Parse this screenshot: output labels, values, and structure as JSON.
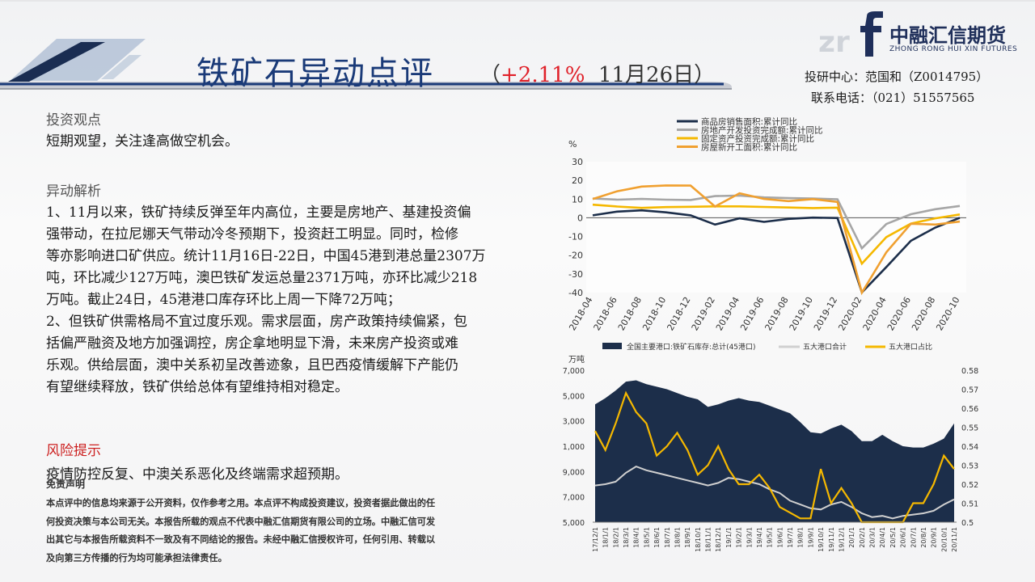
{
  "header": {
    "title": "铁矿石异动点评",
    "paren_open": "（",
    "change": "+2.11%",
    "date": "11月26日",
    "paren_close": "）",
    "logo_cn": "中融汇信期货",
    "logo_en": "ZHONG RONG HUI XIN FUTURES",
    "contact_line1": "投研中心：范国和（Z0014795）",
    "contact_line2": "联系电话：（021）51557565"
  },
  "content": {
    "view_title": "投资观点",
    "view_text": "短期观望，关注逢高做空机会。",
    "analysis_title": "异动解析",
    "analysis_lines": [
      "1、11月以来，铁矿持续反弹至年内高位，主要是房地产、基建投资偏",
      "强带动，在拉尼娜天气带动冷冬预期下，投资赶工明显。同时，检修",
      "等亦影响进口矿供应。统计11月16日-22日，中国45港到港总量2307万",
      "吨，环比减少127万吨，澳巴铁矿发运总量2371万吨，亦环比减少218",
      "万吨。截止24日，45港港口库存环比上周一下降72万吨；",
      "2、但铁矿供需格局不宜过度乐观。需求层面，房产政策持续偏紧，包",
      "括偏严融资及地方加强调控，房企拿地明显下滑，未来房产投资或难",
      "乐观。供给层面，澳中关系初呈改善迹象，且巴西疫情缓解下产能仍",
      "有望继续释放，铁矿供给总体有望维持相对稳定。"
    ],
    "risk_title": "风险提示",
    "risk_text": "疫情防控反复、中澳关系恶化及终端需求超预期。",
    "disclaimer_title": "免责声明",
    "disclaimer_lines": [
      "本点评中的信息均来源于公开资料，仅作参考之用。本点评不构成投资建议，投资者据此做出的任",
      "何投资决策与本公司无关。本报告所载的观点不代表中融汇信期货有限公司的立场。中融汇信可发",
      "出其它与本报告所载资料不一致及有不同结论的报告。未经中融汇信授权许可，任何引用、转载以",
      "及向第三方传播的行为均可能承担法律责任。"
    ]
  },
  "colors": {
    "title": "#1a3a78",
    "risk": "#cc1f1f",
    "chart_navy": "#1c2e4a",
    "chart_gray": "#a6a6a6",
    "chart_lightgray": "#d0d0d0",
    "chart_yellow": "#f5b800",
    "chart_orange": "#f0a030"
  },
  "chart_data": [
    {
      "type": "line",
      "ylabel": "%",
      "ylim": [
        -40,
        30
      ],
      "yticks": [
        30,
        20,
        10,
        0,
        -10,
        -20,
        -30,
        -40
      ],
      "x": [
        "2018-04",
        "2018-06",
        "2018-08",
        "2018-10",
        "2018-12",
        "2019-02",
        "2019-04",
        "2019-06",
        "2019-08",
        "2019-10",
        "2019-12",
        "2020-02",
        "2020-04",
        "2020-06",
        "2020-08",
        "2020-10"
      ],
      "series": [
        {
          "name": "商品房销售面积:累计同比",
          "values": [
            1.3,
            3.3,
            4.0,
            2.9,
            1.3,
            -3.6,
            -0.3,
            -2.2,
            -0.6,
            0.1,
            -0.1,
            -39.9,
            -26.3,
            -12.3,
            -5.2,
            0.0
          ]
        },
        {
          "name": "房地产开发投资完成额:累计同比",
          "values": [
            10.3,
            9.7,
            10.1,
            9.7,
            9.5,
            11.6,
            11.9,
            10.9,
            10.5,
            10.3,
            9.9,
            -16.3,
            -3.3,
            1.9,
            4.6,
            6.3
          ]
        },
        {
          "name": "固定资产投资完成额:累计同比",
          "values": [
            7.0,
            6.0,
            5.3,
            5.7,
            5.9,
            6.1,
            6.1,
            5.8,
            5.5,
            5.2,
            5.4,
            -24.5,
            -10.3,
            -3.1,
            -0.3,
            1.8
          ]
        },
        {
          "name": "房屋新开工面积:累计同比",
          "values": [
            10.0,
            14.2,
            16.7,
            17.3,
            17.2,
            6.0,
            13.1,
            10.1,
            8.9,
            10.0,
            8.5,
            -44.9,
            -18.4,
            -3.2,
            -3.6,
            -2.0
          ]
        }
      ]
    },
    {
      "type": "area",
      "ylabel": "万吨",
      "ylim": [
        5000,
        17000
      ],
      "yticks": [
        "17,000",
        "15,000",
        "13,000",
        "11,000",
        "9,000",
        "7,000",
        "5,000"
      ],
      "y2lim": [
        0.5,
        0.58
      ],
      "y2ticks": [
        "0.58",
        "0.57",
        "0.56",
        "0.55",
        "0.54",
        "0.53",
        "0.52",
        "0.51",
        "0.5"
      ],
      "x": [
        "17/12/1",
        "18/1/1",
        "18/2/1",
        "18/3/1",
        "18/4/1",
        "18/5/1",
        "18/6/1",
        "18/7/1",
        "18/8/1",
        "18/9/1",
        "18/10/1",
        "18/11/1",
        "18/12/1",
        "19/1/1",
        "19/2/1",
        "19/3/1",
        "19/4/1",
        "19/5/1",
        "19/6/1",
        "19/7/1",
        "19/8/1",
        "19/9/1",
        "19/10/1",
        "19/11/1",
        "19/12/1",
        "20/1/1",
        "20/2/1",
        "20/3/1",
        "20/4/1",
        "20/5/1",
        "20/6/1",
        "20/7/1",
        "20/8/1",
        "20/9/1",
        "20/10/1",
        "20/11/1"
      ],
      "series": [
        {
          "name": "全国主要港口:铁矿石库存:总计(45港口)",
          "values": [
            14300,
            14800,
            15400,
            16100,
            16200,
            15900,
            15700,
            15500,
            15200,
            14900,
            14700,
            14100,
            14300,
            14600,
            14800,
            14600,
            14500,
            14200,
            13900,
            13600,
            12900,
            12100,
            12000,
            12400,
            12700,
            12200,
            11400,
            11400,
            11900,
            11400,
            11000,
            10900,
            10900,
            11200,
            11600,
            12800
          ]
        },
        {
          "name": "五大港口合计",
          "values": [
            7900,
            8000,
            8200,
            8900,
            9400,
            9100,
            8900,
            8700,
            8500,
            8300,
            8100,
            7900,
            8100,
            8500,
            8400,
            8200,
            8000,
            7600,
            7300,
            6700,
            6400,
            6100,
            6000,
            6400,
            6600,
            6200,
            5700,
            5400,
            5500,
            5300,
            5500,
            5600,
            5700,
            5900,
            6400,
            6800
          ]
        },
        {
          "name": "五大港口占比",
          "values": [
            0.548,
            0.538,
            0.552,
            0.568,
            0.558,
            0.552,
            0.535,
            0.54,
            0.547,
            0.538,
            0.525,
            0.53,
            0.54,
            0.528,
            0.52,
            0.52,
            0.525,
            0.518,
            0.508,
            0.505,
            0.502,
            0.502,
            0.528,
            0.51,
            0.518,
            0.51,
            0.5,
            0.5,
            0.5,
            0.5,
            0.5,
            0.51,
            0.51,
            0.52,
            0.535,
            0.528
          ]
        }
      ]
    }
  ]
}
